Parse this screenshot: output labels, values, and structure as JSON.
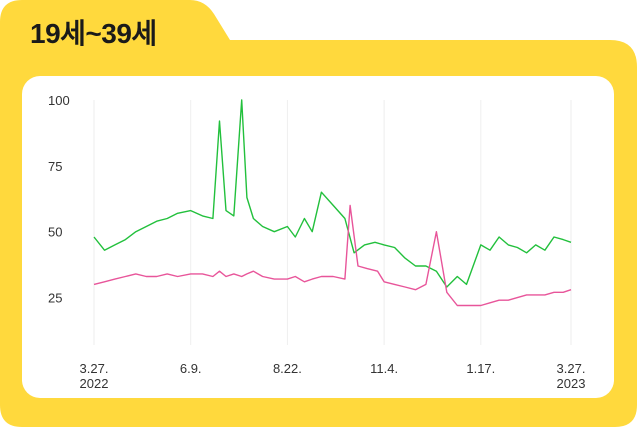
{
  "header": {
    "title": "19세~39세"
  },
  "colors": {
    "frame": "#FFD93D",
    "panel": "#FFFFFF",
    "green": "#22C03C",
    "pink": "#E8559A",
    "grid": "#EEEEEE"
  },
  "chart_data": {
    "type": "line",
    "title": "",
    "xlabel": "",
    "ylabel": "",
    "ylim": [
      7,
      100
    ],
    "y_ticks": [
      {
        "value": 100,
        "label": "100"
      },
      {
        "value": 75,
        "label": "75"
      },
      {
        "value": 50,
        "label": "50"
      },
      {
        "value": 25,
        "label": "25"
      }
    ],
    "x_range": [
      "2022-03-27",
      "2023-03-27"
    ],
    "x_ticks": [
      {
        "date": "2022-03-27",
        "line1": "3.27.",
        "line2": "2022"
      },
      {
        "date": "2022-06-09",
        "line1": "6.9.",
        "line2": ""
      },
      {
        "date": "2022-08-22",
        "line1": "8.22.",
        "line2": ""
      },
      {
        "date": "2022-11-04",
        "line1": "11.4.",
        "line2": ""
      },
      {
        "date": "2023-01-17",
        "line1": "1.17.",
        "line2": ""
      },
      {
        "date": "2023-03-27",
        "line1": "3.27.",
        "line2": "2023"
      }
    ],
    "grid": true,
    "series": [
      {
        "color": "#22C03C",
        "x": [
          "2022-03-27",
          "2022-04-04",
          "2022-04-12",
          "2022-04-20",
          "2022-04-28",
          "2022-05-06",
          "2022-05-14",
          "2022-05-22",
          "2022-05-30",
          "2022-06-09",
          "2022-06-18",
          "2022-06-26",
          "2022-07-01",
          "2022-07-06",
          "2022-07-12",
          "2022-07-18",
          "2022-07-22",
          "2022-07-27",
          "2022-08-03",
          "2022-08-12",
          "2022-08-22",
          "2022-08-28",
          "2022-09-04",
          "2022-09-10",
          "2022-09-17",
          "2022-09-26",
          "2022-10-05",
          "2022-10-12",
          "2022-10-20",
          "2022-10-28",
          "2022-11-04",
          "2022-11-12",
          "2022-11-20",
          "2022-11-28",
          "2022-12-06",
          "2022-12-14",
          "2022-12-22",
          "2022-12-30",
          "2023-01-06",
          "2023-01-17",
          "2023-01-24",
          "2023-01-31",
          "2023-02-07",
          "2023-02-14",
          "2023-02-21",
          "2023-02-28",
          "2023-03-07",
          "2023-03-14",
          "2023-03-21",
          "2023-03-27"
        ],
        "values": [
          48,
          43,
          45,
          47,
          50,
          52,
          54,
          55,
          57,
          58,
          56,
          55,
          92,
          58,
          56,
          100,
          63,
          55,
          52,
          50,
          52,
          48,
          55,
          50,
          65,
          60,
          55,
          42,
          45,
          46,
          45,
          44,
          40,
          37,
          37,
          35,
          29,
          33,
          30,
          45,
          43,
          48,
          45,
          44,
          42,
          45,
          43,
          48,
          47,
          46
        ]
      },
      {
        "color": "#E8559A",
        "x": [
          "2022-03-27",
          "2022-04-04",
          "2022-04-12",
          "2022-04-20",
          "2022-04-28",
          "2022-05-06",
          "2022-05-14",
          "2022-05-22",
          "2022-05-30",
          "2022-06-09",
          "2022-06-18",
          "2022-06-26",
          "2022-07-01",
          "2022-07-06",
          "2022-07-12",
          "2022-07-18",
          "2022-07-22",
          "2022-07-27",
          "2022-08-03",
          "2022-08-12",
          "2022-08-22",
          "2022-08-28",
          "2022-09-04",
          "2022-09-10",
          "2022-09-17",
          "2022-09-26",
          "2022-10-05",
          "2022-10-09",
          "2022-10-15",
          "2022-10-22",
          "2022-10-30",
          "2022-11-04",
          "2022-11-12",
          "2022-11-20",
          "2022-11-28",
          "2022-12-06",
          "2022-12-14",
          "2022-12-22",
          "2022-12-30",
          "2023-01-06",
          "2023-01-17",
          "2023-01-24",
          "2023-01-31",
          "2023-02-07",
          "2023-02-14",
          "2023-02-21",
          "2023-02-28",
          "2023-03-07",
          "2023-03-14",
          "2023-03-21",
          "2023-03-27"
        ],
        "values": [
          30,
          31,
          32,
          33,
          34,
          33,
          33,
          34,
          33,
          34,
          34,
          33,
          35,
          33,
          34,
          33,
          34,
          35,
          33,
          32,
          32,
          33,
          31,
          32,
          33,
          33,
          32,
          60,
          37,
          36,
          35,
          31,
          30,
          29,
          28,
          30,
          50,
          27,
          22,
          22,
          22,
          23,
          24,
          24,
          25,
          26,
          26,
          26,
          27,
          27,
          28
        ]
      }
    ]
  }
}
